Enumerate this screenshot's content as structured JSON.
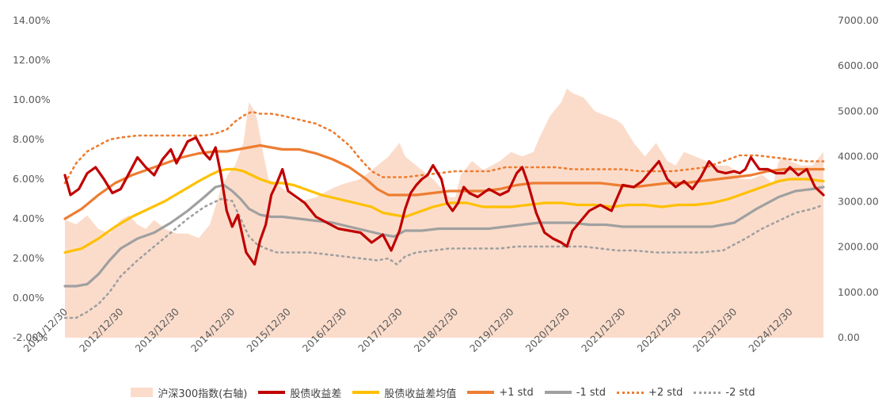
{
  "chart_data": {
    "type": "line",
    "title": "",
    "x_tick_labels": [
      "2011/12/30",
      "2012/12/30",
      "2013/12/30",
      "2014/12/30",
      "2015/12/30",
      "2016/12/30",
      "2017/12/30",
      "2018/12/30",
      "2019/12/30",
      "2020/12/30",
      "2021/12/30",
      "2022/12/30",
      "2023/12/30",
      "2024/12/30"
    ],
    "x_range": [
      2012.0,
      2025.6
    ],
    "y_left_ticks": [
      "-2.00%",
      "0.00%",
      "2.00%",
      "4.00%",
      "6.00%",
      "8.00%",
      "10.00%",
      "12.00%",
      "14.00%"
    ],
    "y_left_range": [
      -2,
      14
    ],
    "y_right_ticks": [
      "0.00",
      "1000.00",
      "2000.00",
      "3000.00",
      "4000.00",
      "5000.00",
      "6000.00",
      "7000.00"
    ],
    "y_right_range": [
      0,
      7000
    ],
    "grid": false,
    "legend_position": "bottom",
    "colors": {
      "index": "#fbdccb",
      "spread": "#c00000",
      "mean": "#ffc000",
      "plus1": "#ed7d31",
      "minus1": "#a0a0a0",
      "plus2": "#ed7d31",
      "minus2": "#a0a0a0"
    },
    "series": [
      {
        "key": "index",
        "name": "沪深300指数(右轴)",
        "axis": "right",
        "x": [
          2012.0,
          2012.2,
          2012.4,
          2012.6,
          2012.8,
          2013.0,
          2013.15,
          2013.3,
          2013.45,
          2013.6,
          2013.8,
          2014.0,
          2014.2,
          2014.4,
          2014.6,
          2014.8,
          2014.92,
          2015.05,
          2015.2,
          2015.3,
          2015.4,
          2015.45,
          2015.55,
          2015.65,
          2015.8,
          2016.0,
          2016.2,
          2016.5,
          2016.8,
          2017.0,
          2017.3,
          2017.6,
          2017.8,
          2018.0,
          2018.1,
          2018.3,
          2018.6,
          2018.9,
          2019.0,
          2019.1,
          2019.3,
          2019.5,
          2019.8,
          2020.0,
          2020.2,
          2020.4,
          2020.5,
          2020.7,
          2020.9,
          2021.0,
          2021.1,
          2021.3,
          2021.5,
          2021.7,
          2021.9,
          2022.0,
          2022.2,
          2022.4,
          2022.6,
          2022.8,
          2022.95,
          2023.1,
          2023.3,
          2023.5,
          2023.7,
          2023.9,
          2024.0,
          2024.1,
          2024.3,
          2024.5,
          2024.7,
          2024.8,
          2024.9,
          2025.0,
          2025.2,
          2025.4,
          2025.6
        ],
        "values": [
          2600,
          2500,
          2700,
          2400,
          2300,
          2600,
          2700,
          2500,
          2400,
          2600,
          2400,
          2300,
          2300,
          2200,
          2500,
          3300,
          3600,
          3800,
          4300,
          5200,
          5000,
          4800,
          4100,
          3500,
          3400,
          3200,
          3000,
          3100,
          3300,
          3400,
          3500,
          3800,
          4000,
          4300,
          4000,
          3800,
          3500,
          3100,
          3100,
          3600,
          3900,
          3700,
          3900,
          4100,
          4000,
          4100,
          4400,
          4900,
          5200,
          5500,
          5400,
          5300,
          5000,
          4900,
          4800,
          4700,
          4300,
          4000,
          4300,
          3900,
          3800,
          4100,
          4000,
          3900,
          3800,
          3800,
          3700,
          3500,
          3500,
          3600,
          3400,
          3900,
          4000,
          3900,
          3800,
          3800,
          4100
        ]
      },
      {
        "key": "spread",
        "name": "股债收益差",
        "axis": "left",
        "x": [
          2012.0,
          2012.1,
          2012.25,
          2012.4,
          2012.55,
          2012.7,
          2012.85,
          2013.0,
          2013.15,
          2013.3,
          2013.45,
          2013.6,
          2013.75,
          2013.9,
          2014.0,
          2014.2,
          2014.35,
          2014.5,
          2014.6,
          2014.7,
          2014.8,
          2014.9,
          2015.0,
          2015.1,
          2015.25,
          2015.4,
          2015.5,
          2015.6,
          2015.7,
          2015.8,
          2015.9,
          2016.0,
          2016.15,
          2016.3,
          2016.5,
          2016.7,
          2016.9,
          2017.1,
          2017.3,
          2017.5,
          2017.7,
          2017.85,
          2018.0,
          2018.1,
          2018.2,
          2018.3,
          2018.4,
          2018.5,
          2018.6,
          2018.75,
          2018.85,
          2018.95,
          2019.05,
          2019.15,
          2019.25,
          2019.4,
          2019.6,
          2019.8,
          2019.95,
          2020.1,
          2020.2,
          2020.3,
          2020.45,
          2020.6,
          2020.75,
          2020.9,
          2021.0,
          2021.1,
          2021.25,
          2021.4,
          2021.6,
          2021.8,
          2022.0,
          2022.2,
          2022.35,
          2022.5,
          2022.65,
          2022.8,
          2022.95,
          2023.1,
          2023.25,
          2023.4,
          2023.55,
          2023.7,
          2023.85,
          2024.0,
          2024.1,
          2024.2,
          2024.3,
          2024.45,
          2024.6,
          2024.75,
          2024.9,
          2025.0,
          2025.15,
          2025.3,
          2025.45,
          2025.6
        ],
        "values": [
          6.2,
          5.2,
          5.5,
          6.3,
          6.6,
          6.0,
          5.3,
          5.5,
          6.3,
          7.1,
          6.6,
          6.2,
          7.0,
          7.5,
          6.8,
          7.9,
          8.1,
          7.3,
          7.0,
          7.6,
          6.2,
          4.4,
          3.6,
          4.2,
          2.3,
          1.7,
          2.9,
          3.7,
          5.2,
          5.8,
          6.5,
          5.4,
          5.1,
          4.8,
          4.1,
          3.8,
          3.5,
          3.4,
          3.3,
          2.8,
          3.2,
          2.4,
          3.4,
          4.5,
          5.3,
          5.7,
          6.0,
          6.2,
          6.7,
          6.0,
          4.8,
          4.4,
          4.8,
          5.6,
          5.3,
          5.1,
          5.5,
          5.2,
          5.4,
          6.3,
          6.6,
          5.8,
          4.3,
          3.3,
          3.0,
          2.8,
          2.6,
          3.4,
          3.9,
          4.4,
          4.7,
          4.4,
          5.7,
          5.6,
          5.9,
          6.4,
          6.9,
          6.0,
          5.6,
          5.9,
          5.5,
          6.1,
          6.9,
          6.4,
          6.3,
          6.4,
          6.3,
          6.5,
          7.1,
          6.5,
          6.5,
          6.3,
          6.3,
          6.6,
          6.2,
          6.5,
          5.6,
          5.2
        ]
      },
      {
        "key": "mean",
        "name": "股债收益差均值",
        "axis": "left",
        "x": [
          2012.0,
          2012.3,
          2012.6,
          2012.9,
          2013.2,
          2013.5,
          2013.8,
          2014.1,
          2014.4,
          2014.6,
          2014.75,
          2014.9,
          2015.05,
          2015.2,
          2015.35,
          2015.5,
          2015.7,
          2015.9,
          2016.1,
          2016.3,
          2016.6,
          2016.9,
          2017.2,
          2017.5,
          2017.7,
          2017.9,
          2018.1,
          2018.3,
          2018.6,
          2018.9,
          2019.2,
          2019.5,
          2019.8,
          2020.0,
          2020.3,
          2020.6,
          2020.9,
          2021.2,
          2021.5,
          2021.8,
          2022.1,
          2022.4,
          2022.7,
          2023.0,
          2023.3,
          2023.6,
          2023.9,
          2024.2,
          2024.5,
          2024.8,
          2025.0,
          2025.3,
          2025.6
        ],
        "values": [
          2.3,
          2.5,
          3.0,
          3.6,
          4.1,
          4.5,
          4.9,
          5.4,
          5.9,
          6.2,
          6.4,
          6.5,
          6.5,
          6.4,
          6.2,
          6.0,
          5.8,
          5.8,
          5.7,
          5.5,
          5.2,
          5.0,
          4.8,
          4.6,
          4.3,
          4.2,
          4.1,
          4.3,
          4.6,
          4.8,
          4.8,
          4.6,
          4.6,
          4.6,
          4.7,
          4.8,
          4.8,
          4.7,
          4.7,
          4.6,
          4.7,
          4.7,
          4.6,
          4.7,
          4.7,
          4.8,
          5.0,
          5.3,
          5.6,
          5.9,
          6.0,
          6.0,
          5.9
        ]
      },
      {
        "key": "plus1",
        "name": "+1 std",
        "axis": "left",
        "x": [
          2012.0,
          2012.3,
          2012.6,
          2012.9,
          2013.2,
          2013.5,
          2013.8,
          2014.1,
          2014.4,
          2014.7,
          2014.9,
          2015.1,
          2015.3,
          2015.5,
          2015.7,
          2015.9,
          2016.2,
          2016.5,
          2016.8,
          2017.1,
          2017.4,
          2017.6,
          2017.8,
          2018.0,
          2018.3,
          2018.6,
          2018.9,
          2019.2,
          2019.5,
          2019.8,
          2020.1,
          2020.4,
          2020.7,
          2021.0,
          2021.3,
          2021.6,
          2021.9,
          2022.2,
          2022.5,
          2022.8,
          2023.1,
          2023.4,
          2023.7,
          2024.0,
          2024.3,
          2024.6,
          2024.9,
          2025.2,
          2025.6
        ],
        "values": [
          4.0,
          4.5,
          5.2,
          5.8,
          6.2,
          6.5,
          6.8,
          7.1,
          7.3,
          7.4,
          7.4,
          7.5,
          7.6,
          7.7,
          7.6,
          7.5,
          7.5,
          7.3,
          7.0,
          6.6,
          6.0,
          5.5,
          5.2,
          5.2,
          5.2,
          5.3,
          5.4,
          5.4,
          5.4,
          5.5,
          5.7,
          5.8,
          5.8,
          5.8,
          5.8,
          5.8,
          5.7,
          5.6,
          5.7,
          5.8,
          5.8,
          5.9,
          6.0,
          6.1,
          6.2,
          6.4,
          6.5,
          6.5,
          6.5
        ]
      },
      {
        "key": "minus1",
        "name": "-1 std",
        "axis": "left",
        "x": [
          2012.0,
          2012.2,
          2012.4,
          2012.6,
          2012.8,
          2013.0,
          2013.3,
          2013.6,
          2013.9,
          2014.2,
          2014.5,
          2014.7,
          2014.85,
          2015.0,
          2015.15,
          2015.3,
          2015.5,
          2015.7,
          2015.9,
          2016.2,
          2016.5,
          2016.8,
          2017.1,
          2017.4,
          2017.7,
          2017.9,
          2018.1,
          2018.4,
          2018.7,
          2019.0,
          2019.3,
          2019.6,
          2019.9,
          2020.2,
          2020.5,
          2020.8,
          2021.1,
          2021.4,
          2021.7,
          2022.0,
          2022.4,
          2022.8,
          2023.2,
          2023.6,
          2024.0,
          2024.4,
          2024.8,
          2025.1,
          2025.4,
          2025.6
        ],
        "values": [
          0.6,
          0.6,
          0.7,
          1.2,
          1.9,
          2.5,
          3.0,
          3.3,
          3.8,
          4.4,
          5.1,
          5.6,
          5.7,
          5.4,
          5.0,
          4.5,
          4.2,
          4.1,
          4.1,
          4.0,
          3.9,
          3.8,
          3.6,
          3.4,
          3.2,
          3.1,
          3.4,
          3.4,
          3.5,
          3.5,
          3.5,
          3.5,
          3.6,
          3.7,
          3.8,
          3.8,
          3.8,
          3.7,
          3.7,
          3.6,
          3.6,
          3.6,
          3.6,
          3.6,
          3.8,
          4.5,
          5.1,
          5.4,
          5.5,
          5.6
        ]
      },
      {
        "key": "plus2",
        "name": "+2 std",
        "axis": "left",
        "x": [
          2012.0,
          2012.2,
          2012.4,
          2012.6,
          2012.8,
          2013.0,
          2013.3,
          2013.6,
          2013.9,
          2014.2,
          2014.5,
          2014.7,
          2014.9,
          2015.05,
          2015.2,
          2015.35,
          2015.5,
          2015.7,
          2015.9,
          2016.2,
          2016.5,
          2016.8,
          2017.1,
          2017.3,
          2017.5,
          2017.7,
          2017.9,
          2018.1,
          2018.4,
          2018.7,
          2019.0,
          2019.3,
          2019.6,
          2019.9,
          2020.2,
          2020.5,
          2020.8,
          2021.1,
          2021.4,
          2021.7,
          2022.0,
          2022.3,
          2022.6,
          2022.9,
          2023.2,
          2023.5,
          2023.8,
          2024.1,
          2024.4,
          2024.7,
          2025.0,
          2025.3,
          2025.6
        ],
        "values": [
          5.8,
          6.8,
          7.4,
          7.7,
          8.0,
          8.1,
          8.2,
          8.2,
          8.2,
          8.2,
          8.2,
          8.3,
          8.5,
          8.9,
          9.2,
          9.4,
          9.3,
          9.3,
          9.2,
          9.0,
          8.8,
          8.4,
          7.7,
          7.0,
          6.4,
          6.1,
          6.1,
          6.1,
          6.2,
          6.3,
          6.4,
          6.4,
          6.4,
          6.6,
          6.6,
          6.6,
          6.6,
          6.5,
          6.5,
          6.5,
          6.5,
          6.4,
          6.4,
          6.4,
          6.5,
          6.6,
          6.9,
          7.2,
          7.2,
          7.1,
          7.0,
          6.9,
          6.9
        ]
      },
      {
        "key": "minus2",
        "name": "-2 std",
        "axis": "left",
        "x": [
          2012.0,
          2012.2,
          2012.4,
          2012.6,
          2012.8,
          2013.0,
          2013.3,
          2013.6,
          2013.9,
          2014.2,
          2014.5,
          2014.8,
          2015.0,
          2015.15,
          2015.3,
          2015.45,
          2015.6,
          2015.8,
          2016.1,
          2016.4,
          2016.7,
          2017.0,
          2017.3,
          2017.6,
          2017.8,
          2017.95,
          2018.1,
          2018.3,
          2018.6,
          2018.9,
          2019.2,
          2019.5,
          2019.8,
          2020.1,
          2020.4,
          2020.7,
          2021.0,
          2021.3,
          2021.6,
          2021.9,
          2022.2,
          2022.6,
          2023.0,
          2023.4,
          2023.8,
          2024.2,
          2024.5,
          2024.8,
          2025.1,
          2025.4,
          2025.6
        ],
        "values": [
          -1.0,
          -1.0,
          -0.7,
          -0.3,
          0.3,
          1.1,
          1.9,
          2.6,
          3.3,
          4.0,
          4.6,
          5.0,
          4.9,
          4.0,
          3.1,
          2.7,
          2.5,
          2.3,
          2.3,
          2.3,
          2.2,
          2.1,
          2.0,
          1.9,
          2.0,
          1.7,
          2.1,
          2.3,
          2.4,
          2.5,
          2.5,
          2.5,
          2.5,
          2.6,
          2.6,
          2.6,
          2.6,
          2.6,
          2.5,
          2.4,
          2.4,
          2.3,
          2.3,
          2.3,
          2.4,
          3.0,
          3.5,
          3.9,
          4.3,
          4.5,
          4.7
        ]
      }
    ]
  }
}
